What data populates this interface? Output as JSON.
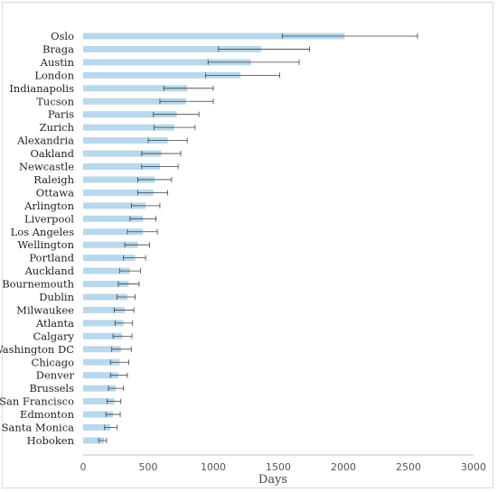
{
  "chart_data": {
    "type": "bar",
    "orientation": "horizontal",
    "title": "",
    "xlabel": "Days",
    "ylabel": "",
    "xlim": [
      0,
      3000
    ],
    "xticks": [
      0,
      500,
      1000,
      1500,
      2000,
      2500,
      3000
    ],
    "grid": false,
    "legend": "none",
    "colors": {
      "bar": "#b8d8ec",
      "error_bar": "#404040",
      "axis": "#bfbfbf"
    },
    "categories": [
      "Oslo",
      "Braga",
      "Austin",
      "London",
      "Indianapolis",
      "Tucson",
      "Paris",
      "Zurich",
      "Alexandria",
      "Oakland",
      "Newcastle",
      "Raleigh",
      "Ottawa",
      "Arlington",
      "Liverpool",
      "Los Angeles",
      "Wellington",
      "Portland",
      "Auckland",
      "Bournemouth",
      "Dublin",
      "Milwaukee",
      "Atlanta",
      "Calgary",
      "Washington DC",
      "Chicago",
      "Denver",
      "Brussels",
      "San Francisco",
      "Edmonton",
      "Santa Monica",
      "Hoboken"
    ],
    "values": [
      2010,
      1370,
      1290,
      1210,
      800,
      790,
      720,
      700,
      650,
      600,
      590,
      550,
      540,
      480,
      460,
      460,
      420,
      400,
      360,
      350,
      340,
      320,
      310,
      300,
      290,
      280,
      270,
      250,
      240,
      230,
      210,
      160
    ],
    "error_low": [
      1530,
      1040,
      960,
      940,
      620,
      590,
      540,
      545,
      500,
      450,
      450,
      420,
      420,
      370,
      360,
      340,
      320,
      310,
      280,
      270,
      260,
      240,
      245,
      230,
      220,
      210,
      210,
      195,
      185,
      175,
      165,
      120
    ],
    "error_high": [
      2570,
      1740,
      1660,
      1510,
      1000,
      1000,
      890,
      860,
      800,
      750,
      730,
      680,
      650,
      590,
      560,
      570,
      510,
      480,
      440,
      430,
      400,
      390,
      380,
      375,
      370,
      350,
      340,
      310,
      290,
      285,
      260,
      180
    ]
  }
}
